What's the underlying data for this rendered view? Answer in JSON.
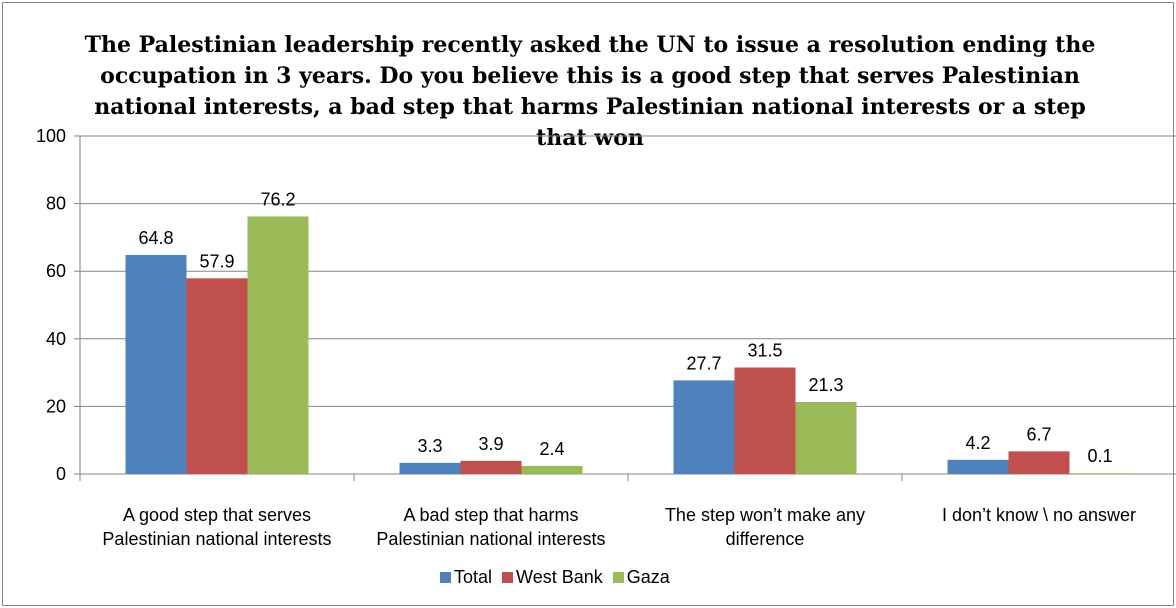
{
  "chart_data": {
    "type": "bar",
    "title": "The Palestinian leadership recently asked the UN to issue a resolution ending the occupation in 3 years. Do you believe this is a good step that serves Palestinian national interests, a bad step that harms Palestinian national interests or a step that won",
    "categories": [
      "A good step that serves Palestinian national interests",
      "A bad step that harms Palestinian national interests",
      "The step won’t make any difference",
      "I don’t know \\ no answer"
    ],
    "series": [
      {
        "name": "Total",
        "color": "#4f81bd",
        "values": [
          64.8,
          3.3,
          27.7,
          4.2
        ]
      },
      {
        "name": "West Bank",
        "color": "#c0504d",
        "values": [
          57.9,
          3.9,
          31.5,
          6.7
        ]
      },
      {
        "name": "Gaza",
        "color": "#9bbb59",
        "values": [
          76.2,
          2.4,
          21.3,
          0.1
        ]
      }
    ],
    "yticks": [
      "0",
      "20",
      "40",
      "60",
      "80",
      "100"
    ],
    "ylim": [
      0,
      100
    ],
    "xlabel": "",
    "ylabel": "",
    "grid": true,
    "legend": "bottom"
  }
}
